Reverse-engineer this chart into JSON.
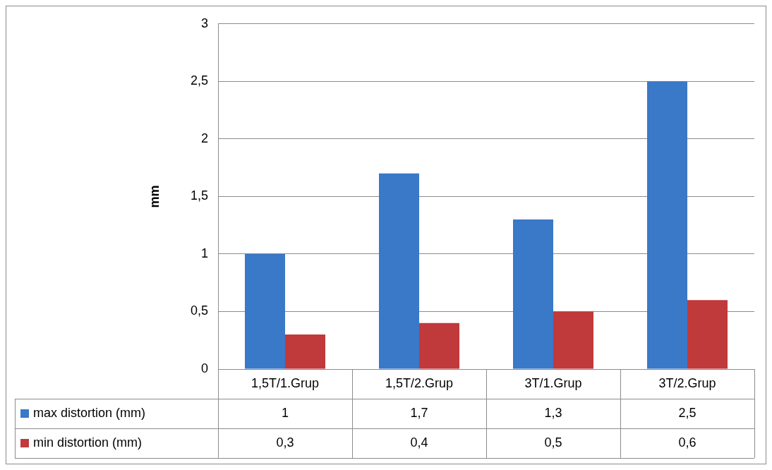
{
  "chart_data": {
    "type": "bar",
    "ylabel": "mm",
    "categories": [
      "1,5T/1.Grup",
      "1,5T/2.Grup",
      "3T/1.Grup",
      "3T/2.Grup"
    ],
    "series": [
      {
        "name": "max distortion (mm)",
        "color": "#3a78c8",
        "values": [
          1,
          1.7,
          1.3,
          2.5
        ],
        "value_labels": [
          "1",
          "1,7",
          "1,3",
          "2,5"
        ]
      },
      {
        "name": "min distortion (mm)",
        "color": "#c0393b",
        "values": [
          0.3,
          0.4,
          0.5,
          0.6
        ],
        "value_labels": [
          "0,3",
          "0,4",
          "0,5",
          "0,6"
        ]
      }
    ],
    "ylim": [
      0,
      3
    ],
    "yticks": [
      0,
      {
        "value": 0.5,
        "label": "0,5"
      },
      1,
      {
        "value": 1.5,
        "label": "1,5"
      },
      2,
      {
        "value": 2.5,
        "label": "2,5"
      },
      3
    ],
    "grid": "y",
    "legend": "bottom"
  }
}
